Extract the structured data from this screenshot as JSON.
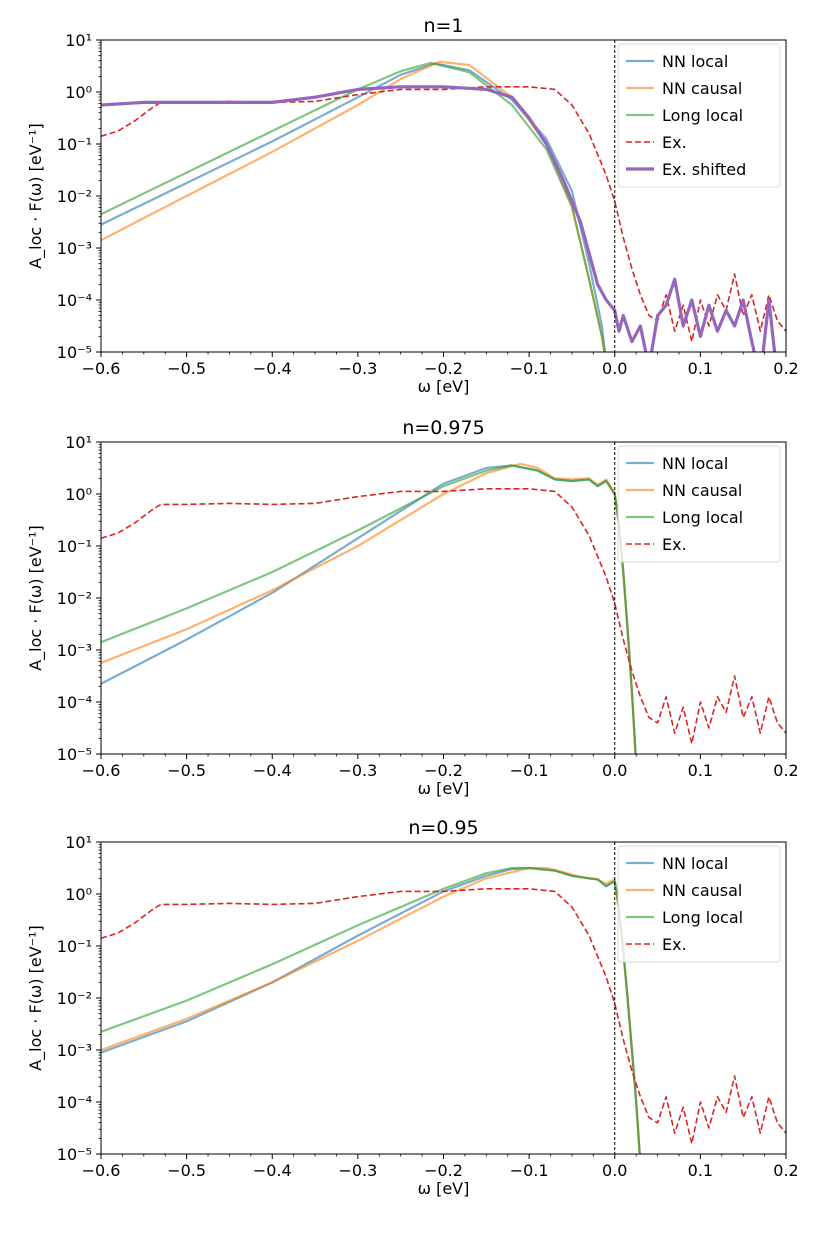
{
  "chart_data": [
    {
      "type": "line",
      "title": "n=1",
      "xlabel": "ω [eV]",
      "ylabel": "A_loc · F(ω) [eV⁻¹]",
      "xlim": [
        -0.6,
        0.2
      ],
      "ylim_log10": [
        -5,
        1
      ],
      "yscale": "log",
      "x_ticks": [
        "−0.6",
        "−0.5",
        "−0.4",
        "−0.3",
        "−0.2",
        "−0.1",
        "0.0",
        "0.1",
        "0.2"
      ],
      "y_ticks": [
        "10⁻⁵",
        "10⁻⁴",
        "10⁻³",
        "10⁻²",
        "10⁻¹",
        "10⁰",
        "10¹"
      ],
      "vline_x": 0.0,
      "legend_position": "top-right",
      "series": [
        {
          "name": "NN local",
          "color": "#1f77b4",
          "style": "solid",
          "x": [
            -0.6,
            -0.5,
            -0.4,
            -0.3,
            -0.25,
            -0.21,
            -0.17,
            -0.12,
            -0.08,
            -0.05,
            -0.03,
            -0.015,
            -0.01
          ],
          "log10": [
            -2.55,
            -1.75,
            -0.95,
            -0.1,
            0.33,
            0.55,
            0.42,
            -0.15,
            -0.9,
            -1.9,
            -3.3,
            -4.5,
            -5.2
          ]
        },
        {
          "name": "NN causal",
          "color": "#ff7f0e",
          "style": "solid",
          "x": [
            -0.6,
            -0.5,
            -0.4,
            -0.3,
            -0.25,
            -0.205,
            -0.17,
            -0.12,
            -0.08,
            -0.05,
            -0.03,
            -0.015,
            -0.01
          ],
          "log10": [
            -2.85,
            -2.0,
            -1.15,
            -0.25,
            0.25,
            0.58,
            0.52,
            -0.1,
            -1.0,
            -2.2,
            -3.6,
            -4.7,
            -5.2
          ]
        },
        {
          "name": "Long local",
          "color": "#2ca02c",
          "style": "solid",
          "x": [
            -0.6,
            -0.5,
            -0.4,
            -0.3,
            -0.25,
            -0.215,
            -0.17,
            -0.12,
            -0.08,
            -0.05,
            -0.03,
            -0.015,
            -0.01
          ],
          "log10": [
            -2.35,
            -1.55,
            -0.75,
            0.05,
            0.4,
            0.56,
            0.38,
            -0.25,
            -1.1,
            -2.2,
            -3.6,
            -4.7,
            -5.2
          ]
        },
        {
          "name": "Ex.",
          "color": "#d62728",
          "style": "dashed",
          "x": [
            -0.6,
            -0.58,
            -0.56,
            -0.54,
            -0.53,
            -0.5,
            -0.45,
            -0.4,
            -0.35,
            -0.3,
            -0.25,
            -0.2,
            -0.15,
            -0.1,
            -0.07,
            -0.05,
            -0.03,
            -0.01,
            0.0,
            0.01,
            0.02,
            0.03,
            0.04,
            0.05,
            0.06,
            0.07,
            0.08,
            0.09,
            0.1,
            0.11,
            0.12,
            0.13,
            0.14,
            0.15,
            0.16,
            0.17,
            0.18,
            0.19,
            0.2
          ],
          "log10": [
            -0.85,
            -0.75,
            -0.55,
            -0.3,
            -0.2,
            -0.2,
            -0.18,
            -0.2,
            -0.18,
            -0.05,
            0.05,
            0.05,
            0.1,
            0.1,
            0.05,
            -0.25,
            -0.8,
            -1.6,
            -2.1,
            -2.8,
            -3.4,
            -3.9,
            -4.3,
            -4.4,
            -3.9,
            -4.6,
            -4.1,
            -4.8,
            -4.0,
            -4.5,
            -3.9,
            -4.2,
            -3.5,
            -4.3,
            -3.9,
            -4.6,
            -3.9,
            -4.4,
            -4.6
          ]
        },
        {
          "name": "Ex. shifted",
          "color": "#9467bd",
          "style": "thick",
          "x": [
            -0.6,
            -0.55,
            -0.5,
            -0.45,
            -0.4,
            -0.35,
            -0.3,
            -0.25,
            -0.2,
            -0.15,
            -0.12,
            -0.1,
            -0.08,
            -0.06,
            -0.04,
            -0.03,
            -0.02,
            -0.01,
            0.0,
            0.005,
            0.01,
            0.02,
            0.03,
            0.04,
            0.05,
            0.06,
            0.07,
            0.08,
            0.09,
            0.1,
            0.11,
            0.12,
            0.13,
            0.14,
            0.15,
            0.16,
            0.17,
            0.18,
            0.19
          ],
          "log10": [
            -0.25,
            -0.2,
            -0.2,
            -0.2,
            -0.2,
            -0.1,
            0.05,
            0.1,
            0.1,
            0.05,
            -0.1,
            -0.5,
            -1.0,
            -1.7,
            -2.5,
            -3.1,
            -3.7,
            -4.0,
            -4.2,
            -4.6,
            -4.3,
            -4.8,
            -4.5,
            -5.3,
            -4.3,
            -4.1,
            -3.6,
            -4.5,
            -4.0,
            -4.7,
            -4.1,
            -4.6,
            -4.2,
            -4.5,
            -4.0,
            -4.8,
            -5.5,
            -4.0,
            -5.5
          ]
        }
      ]
    },
    {
      "type": "line",
      "title": "n=0.975",
      "xlabel": "ω [eV]",
      "ylabel": "A_loc · F(ω) [eV⁻¹]",
      "xlim": [
        -0.6,
        0.2
      ],
      "ylim_log10": [
        -5,
        1
      ],
      "yscale": "log",
      "x_ticks": [
        "−0.6",
        "−0.5",
        "−0.4",
        "−0.3",
        "−0.2",
        "−0.1",
        "0.0",
        "0.1",
        "0.2"
      ],
      "y_ticks": [
        "10⁻⁵",
        "10⁻⁴",
        "10⁻³",
        "10⁻²",
        "10⁻¹",
        "10⁰",
        "10¹"
      ],
      "vline_x": 0.0,
      "legend_position": "top-right",
      "series": [
        {
          "name": "NN local",
          "color": "#1f77b4",
          "style": "solid",
          "x": [
            -0.6,
            -0.5,
            -0.4,
            -0.3,
            -0.2,
            -0.15,
            -0.12,
            -0.09,
            -0.07,
            -0.05,
            -0.03,
            -0.02,
            -0.01,
            0.0,
            0.005,
            0.01,
            0.015,
            0.02,
            0.025
          ],
          "log10": [
            -3.65,
            -2.8,
            -1.9,
            -0.85,
            0.2,
            0.5,
            0.55,
            0.45,
            0.28,
            0.25,
            0.28,
            0.15,
            0.25,
            0.0,
            -0.6,
            -1.5,
            -2.6,
            -3.8,
            -5.2
          ]
        },
        {
          "name": "NN causal",
          "color": "#ff7f0e",
          "style": "solid",
          "x": [
            -0.6,
            -0.5,
            -0.4,
            -0.3,
            -0.2,
            -0.15,
            -0.11,
            -0.09,
            -0.07,
            -0.05,
            -0.03,
            -0.02,
            -0.01,
            0.0,
            0.005,
            0.01,
            0.015,
            0.02,
            0.025
          ],
          "log10": [
            -3.25,
            -2.6,
            -1.85,
            -1.0,
            0.0,
            0.4,
            0.58,
            0.5,
            0.3,
            0.28,
            0.3,
            0.18,
            0.28,
            0.02,
            -0.6,
            -1.5,
            -2.6,
            -3.8,
            -5.2
          ]
        },
        {
          "name": "Long local",
          "color": "#2ca02c",
          "style": "solid",
          "x": [
            -0.6,
            -0.5,
            -0.4,
            -0.3,
            -0.2,
            -0.15,
            -0.12,
            -0.09,
            -0.07,
            -0.05,
            -0.03,
            -0.02,
            -0.01,
            0.0,
            0.005,
            0.01,
            0.015,
            0.02,
            0.025
          ],
          "log10": [
            -2.85,
            -2.2,
            -1.5,
            -0.7,
            0.15,
            0.45,
            0.55,
            0.45,
            0.28,
            0.25,
            0.28,
            0.15,
            0.25,
            0.0,
            -0.6,
            -1.5,
            -2.6,
            -3.8,
            -5.2
          ]
        },
        {
          "name": "Ex.",
          "color": "#d62728",
          "style": "dashed",
          "x": [
            -0.6,
            -0.58,
            -0.56,
            -0.54,
            -0.53,
            -0.5,
            -0.45,
            -0.4,
            -0.35,
            -0.3,
            -0.25,
            -0.2,
            -0.15,
            -0.1,
            -0.07,
            -0.05,
            -0.03,
            -0.01,
            0.0,
            0.01,
            0.02,
            0.03,
            0.04,
            0.05,
            0.06,
            0.07,
            0.08,
            0.09,
            0.1,
            0.11,
            0.12,
            0.13,
            0.14,
            0.15,
            0.16,
            0.17,
            0.18,
            0.19,
            0.2
          ],
          "log10": [
            -0.85,
            -0.75,
            -0.55,
            -0.3,
            -0.2,
            -0.2,
            -0.18,
            -0.2,
            -0.18,
            -0.05,
            0.05,
            0.05,
            0.1,
            0.1,
            0.05,
            -0.25,
            -0.8,
            -1.6,
            -2.1,
            -2.8,
            -3.4,
            -3.9,
            -4.3,
            -4.4,
            -3.9,
            -4.6,
            -4.1,
            -4.8,
            -4.0,
            -4.5,
            -3.9,
            -4.2,
            -3.5,
            -4.3,
            -3.9,
            -4.6,
            -3.9,
            -4.4,
            -4.6
          ]
        }
      ]
    },
    {
      "type": "line",
      "title": "n=0.95",
      "xlabel": "ω [eV]",
      "ylabel": "A_loc · F(ω) [eV⁻¹]",
      "xlim": [
        -0.6,
        0.2
      ],
      "ylim_log10": [
        -5,
        1
      ],
      "yscale": "log",
      "x_ticks": [
        "−0.6",
        "−0.5",
        "−0.4",
        "−0.3",
        "−0.2",
        "−0.1",
        "0.0",
        "0.1",
        "0.2"
      ],
      "y_ticks": [
        "10⁻⁵",
        "10⁻⁴",
        "10⁻³",
        "10⁻²",
        "10⁻¹",
        "10⁰",
        "10¹"
      ],
      "vline_x": 0.0,
      "legend_position": "top-right",
      "series": [
        {
          "name": "NN local",
          "color": "#1f77b4",
          "style": "solid",
          "x": [
            -0.6,
            -0.5,
            -0.4,
            -0.3,
            -0.2,
            -0.15,
            -0.12,
            -0.1,
            -0.07,
            -0.05,
            -0.03,
            -0.02,
            -0.01,
            0.0,
            0.005,
            0.01,
            0.015,
            0.02,
            0.025,
            0.03
          ],
          "log10": [
            -3.05,
            -2.45,
            -1.7,
            -0.8,
            0.05,
            0.35,
            0.48,
            0.5,
            0.45,
            0.35,
            0.3,
            0.28,
            0.15,
            0.25,
            -0.3,
            -1.1,
            -2.0,
            -3.0,
            -4.0,
            -5.2
          ]
        },
        {
          "name": "NN causal",
          "color": "#ff7f0e",
          "style": "solid",
          "x": [
            -0.6,
            -0.5,
            -0.4,
            -0.3,
            -0.2,
            -0.15,
            -0.1,
            -0.08,
            -0.06,
            -0.04,
            -0.03,
            -0.02,
            -0.01,
            0.0,
            0.005,
            0.01,
            0.015,
            0.02,
            0.025,
            0.03
          ],
          "log10": [
            -3.0,
            -2.4,
            -1.7,
            -0.9,
            -0.05,
            0.3,
            0.5,
            0.5,
            0.42,
            0.33,
            0.3,
            0.28,
            0.2,
            0.28,
            -0.3,
            -1.1,
            -2.0,
            -3.0,
            -4.0,
            -5.2
          ]
        },
        {
          "name": "Long local",
          "color": "#2ca02c",
          "style": "solid",
          "x": [
            -0.6,
            -0.5,
            -0.4,
            -0.3,
            -0.2,
            -0.15,
            -0.12,
            -0.1,
            -0.07,
            -0.05,
            -0.03,
            -0.02,
            -0.01,
            0.0,
            0.005,
            0.01,
            0.015,
            0.02,
            0.025,
            0.03
          ],
          "log10": [
            -2.65,
            -2.05,
            -1.35,
            -0.6,
            0.1,
            0.4,
            0.5,
            0.5,
            0.45,
            0.35,
            0.3,
            0.28,
            0.15,
            0.25,
            -0.3,
            -1.1,
            -2.0,
            -3.0,
            -4.0,
            -5.2
          ]
        },
        {
          "name": "Ex.",
          "color": "#d62728",
          "style": "dashed",
          "x": [
            -0.6,
            -0.58,
            -0.56,
            -0.54,
            -0.53,
            -0.5,
            -0.45,
            -0.4,
            -0.35,
            -0.3,
            -0.25,
            -0.2,
            -0.15,
            -0.1,
            -0.07,
            -0.05,
            -0.03,
            -0.01,
            0.0,
            0.01,
            0.02,
            0.03,
            0.04,
            0.05,
            0.06,
            0.07,
            0.08,
            0.09,
            0.1,
            0.11,
            0.12,
            0.13,
            0.14,
            0.15,
            0.16,
            0.17,
            0.18,
            0.19,
            0.2
          ],
          "log10": [
            -0.85,
            -0.75,
            -0.55,
            -0.3,
            -0.2,
            -0.2,
            -0.18,
            -0.2,
            -0.18,
            -0.05,
            0.05,
            0.05,
            0.1,
            0.1,
            0.05,
            -0.25,
            -0.8,
            -1.6,
            -2.1,
            -2.8,
            -3.4,
            -3.9,
            -4.3,
            -4.4,
            -3.9,
            -4.6,
            -4.1,
            -4.8,
            -4.0,
            -4.5,
            -3.9,
            -4.2,
            -3.5,
            -4.3,
            -3.9,
            -4.6,
            -3.9,
            -4.4,
            -4.6
          ]
        }
      ]
    }
  ]
}
